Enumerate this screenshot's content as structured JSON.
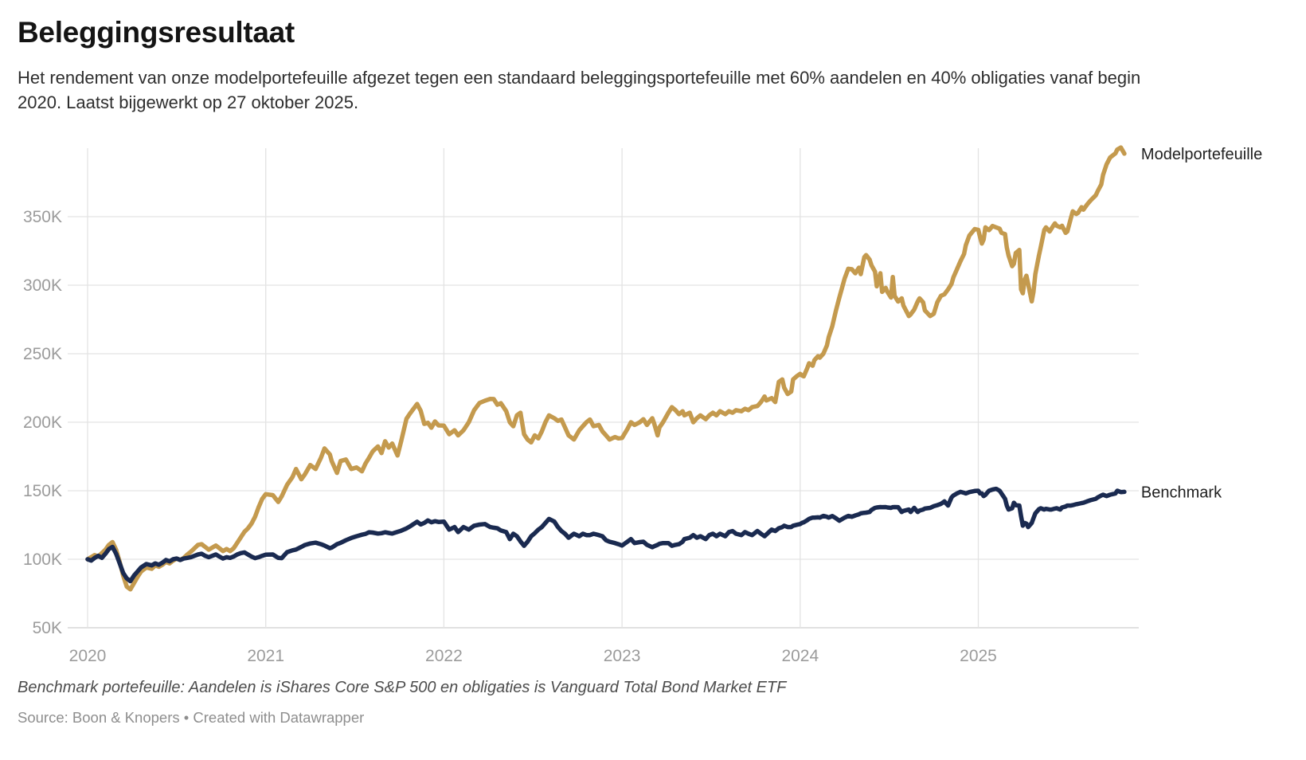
{
  "header": {
    "title": "Beleggingsresultaat",
    "subtitle": "Het rendement van onze modelportefeuille afgezet tegen een standaard beleggingsportefeuille met 60% aandelen en 40% obligaties vanaf begin 2020. Laatst bijgewerkt op 27 oktober 2025."
  },
  "footer": {
    "footnote": "Benchmark portefeuille: Aandelen is iShares Core S&P 500 en obligaties is Vanguard Total Bond Market ETF",
    "source": "Source: Boon & Knopers • Created with Datawrapper"
  },
  "colors": {
    "model_line": "#C49A4E",
    "benchmark_line": "#1A2A50",
    "grid": "#E3E3E3",
    "baseline": "#CFCFCF",
    "axis_text": "#9B9B9B",
    "series_label_text": "#1F1F1F"
  },
  "chart_data": {
    "type": "line",
    "title": "Beleggingsresultaat",
    "x_unit": "year (decimal)",
    "y_unit": "portfolio value in thousands (K)",
    "xlim": [
      2020.0,
      2025.82
    ],
    "ylim": [
      50,
      402
    ],
    "grid": true,
    "legend_position": "end-of-line",
    "x_ticks": [
      {
        "value": 2020,
        "label": "2020"
      },
      {
        "value": 2021,
        "label": "2021"
      },
      {
        "value": 2022,
        "label": "2022"
      },
      {
        "value": 2023,
        "label": "2023"
      },
      {
        "value": 2024,
        "label": "2024"
      },
      {
        "value": 2025,
        "label": "2025"
      }
    ],
    "y_ticks": [
      {
        "value": 50,
        "label": "50K"
      },
      {
        "value": 100,
        "label": "100K"
      },
      {
        "value": 150,
        "label": "150K"
      },
      {
        "value": 200,
        "label": "200K"
      },
      {
        "value": 250,
        "label": "250K"
      },
      {
        "value": 300,
        "label": "300K"
      },
      {
        "value": 350,
        "label": "350K"
      }
    ],
    "x": [
      2020.0,
      2020.02,
      2020.04,
      2020.06,
      2020.08,
      2020.1,
      2020.12,
      2020.14,
      2020.16,
      2020.18,
      2020.2,
      2020.22,
      2020.24,
      2020.26,
      2020.28,
      2020.3,
      2020.33,
      2020.36,
      2020.38,
      2020.4,
      2020.42,
      2020.44,
      2020.46,
      2020.48,
      2020.5,
      2020.52,
      2020.54,
      2020.56,
      2020.58,
      2020.6,
      2020.62,
      2020.64,
      2020.66,
      2020.68,
      2020.7,
      2020.72,
      2020.74,
      2020.76,
      2020.78,
      2020.8,
      2020.82,
      2020.84,
      2020.86,
      2020.88,
      2020.9,
      2020.92,
      2020.94,
      2020.96,
      2020.98,
      2021.0,
      2021.04,
      2021.07,
      2021.09,
      2021.12,
      2021.15,
      2021.17,
      2021.2,
      2021.22,
      2021.25,
      2021.28,
      2021.31,
      2021.33,
      2021.36,
      2021.37,
      2021.4,
      2021.42,
      2021.45,
      2021.48,
      2021.51,
      2021.54,
      2021.56,
      2021.58,
      2021.6,
      2021.63,
      2021.65,
      2021.67,
      2021.69,
      2021.71,
      2021.74,
      2021.76,
      2021.79,
      2021.81,
      2021.85,
      2021.87,
      2021.89,
      2021.91,
      2021.93,
      2021.95,
      2021.97,
      2022.0,
      2022.03,
      2022.06,
      2022.08,
      2022.11,
      2022.14,
      2022.17,
      2022.2,
      2022.23,
      2022.26,
      2022.28,
      2022.3,
      2022.32,
      2022.35,
      2022.37,
      2022.39,
      2022.41,
      2022.43,
      2022.45,
      2022.47,
      2022.49,
      2022.51,
      2022.53,
      2022.55,
      2022.57,
      2022.59,
      2022.62,
      2022.64,
      2022.66,
      2022.68,
      2022.7,
      2022.73,
      2022.76,
      2022.78,
      2022.8,
      2022.82,
      2022.84,
      2022.87,
      2022.89,
      2022.91,
      2022.93,
      2022.96,
      2022.98,
      2023.0,
      2023.03,
      2023.05,
      2023.07,
      2023.1,
      2023.12,
      2023.14,
      2023.17,
      2023.18,
      2023.2,
      2023.21,
      2023.23,
      2023.26,
      2023.28,
      2023.3,
      2023.32,
      2023.34,
      2023.35,
      2023.38,
      2023.4,
      2023.42,
      2023.44,
      2023.47,
      2023.49,
      2023.51,
      2023.53,
      2023.55,
      2023.58,
      2023.6,
      2023.62,
      2023.64,
      2023.67,
      2023.69,
      2023.71,
      2023.73,
      2023.76,
      2023.78,
      2023.8,
      2023.81,
      2023.84,
      2023.86,
      2023.88,
      2023.9,
      2023.91,
      2023.93,
      2023.95,
      2023.96,
      2023.98,
      2024.0,
      2024.01,
      2024.02,
      2024.04,
      2024.05,
      2024.07,
      2024.08,
      2024.1,
      2024.11,
      2024.13,
      2024.15,
      2024.16,
      2024.18,
      2024.2,
      2024.22,
      2024.25,
      2024.27,
      2024.29,
      2024.31,
      2024.33,
      2024.34,
      2024.36,
      2024.37,
      2024.39,
      2024.4,
      2024.42,
      2024.43,
      2024.45,
      2024.46,
      2024.48,
      2024.49,
      2024.51,
      2024.52,
      2024.53,
      2024.55,
      2024.57,
      2024.58,
      2024.61,
      2024.62,
      2024.64,
      2024.66,
      2024.67,
      2024.69,
      2024.7,
      2024.73,
      2024.75,
      2024.77,
      2024.79,
      2024.81,
      2024.83,
      2024.85,
      2024.86,
      2024.88,
      2024.9,
      2024.92,
      2024.93,
      2024.95,
      2024.98,
      2025.0,
      2025.01,
      2025.02,
      2025.03,
      2025.04,
      2025.06,
      2025.08,
      2025.1,
      2025.12,
      2025.13,
      2025.15,
      2025.16,
      2025.17,
      2025.19,
      2025.2,
      2025.21,
      2025.23,
      2025.24,
      2025.25,
      2025.26,
      2025.27,
      2025.28,
      2025.3,
      2025.31,
      2025.32,
      2025.34,
      2025.35,
      2025.37,
      2025.38,
      2025.4,
      2025.41,
      2025.43,
      2025.44,
      2025.46,
      2025.47,
      2025.49,
      2025.5,
      2025.52,
      2025.53,
      2025.55,
      2025.56,
      2025.58,
      2025.59,
      2025.61,
      2025.63,
      2025.66,
      2025.67,
      2025.69,
      2025.7,
      2025.72,
      2025.74,
      2025.77,
      2025.78,
      2025.8,
      2025.82
    ],
    "series": [
      {
        "name": "Modelportefeuille",
        "color": "#C49A4E",
        "values": [
          100,
          101.5,
          103,
          102,
          104.5,
          107,
          110.5,
          112.5,
          107,
          98,
          88,
          80,
          78,
          82.5,
          87,
          91,
          94,
          93,
          95.5,
          94.5,
          96,
          98,
          97,
          99,
          100.5,
          99.5,
          101,
          103.5,
          105.5,
          108,
          110.5,
          111,
          109,
          107,
          108.5,
          110,
          108,
          106,
          107.5,
          106,
          108,
          112,
          116,
          120,
          122.5,
          126,
          131,
          138,
          144,
          147.5,
          146.8,
          141.8,
          146,
          154.3,
          160,
          165.9,
          158.4,
          162,
          168.8,
          165.9,
          174,
          180.9,
          176.5,
          171.7,
          163,
          171.7,
          172.8,
          165.9,
          167,
          164.2,
          169.9,
          174,
          178.6,
          182.3,
          177.5,
          186.1,
          181.5,
          184.4,
          175.7,
          186,
          202.5,
          206.4,
          213.3,
          208.3,
          198.8,
          199.6,
          196,
          200.6,
          197.7,
          197.5,
          191.2,
          194.1,
          190.4,
          194.1,
          200,
          208.8,
          214,
          215.7,
          217,
          216.9,
          212.8,
          213.9,
          208,
          200,
          197.1,
          205,
          206.9,
          191.2,
          187.4,
          185.3,
          190.4,
          188.2,
          193.3,
          200,
          205,
          202.9,
          201,
          202,
          196.2,
          190.4,
          187.4,
          194.1,
          197.1,
          200,
          202,
          197.1,
          198,
          193.3,
          190.4,
          187.4,
          189.2,
          188.2,
          188.5,
          195,
          200,
          198,
          200,
          202.2,
          198,
          202.9,
          199.2,
          190.4,
          196.2,
          200,
          206.9,
          211,
          208.8,
          205.9,
          208,
          205,
          206.9,
          200,
          202.9,
          205,
          202.2,
          205,
          206.9,
          205,
          208,
          205.9,
          208,
          206.9,
          208.8,
          208,
          209.8,
          208.8,
          211,
          211.8,
          214.7,
          218.8,
          215.9,
          217.6,
          214.7,
          229.4,
          231.2,
          225.3,
          220.6,
          222.4,
          231.2,
          233.5,
          235.3,
          234.1,
          233.5,
          239.4,
          243,
          241.2,
          245.3,
          248.2,
          247.1,
          250,
          256,
          262,
          270,
          281,
          291,
          305,
          312,
          311.6,
          308.7,
          312.8,
          308.1,
          320.4,
          322,
          318.7,
          314.6,
          309.9,
          299.2,
          308.7,
          295.1,
          298,
          295.1,
          291,
          306,
          292.2,
          288.1,
          290.4,
          285.1,
          277.5,
          278.6,
          282.2,
          288.1,
          290.4,
          287.5,
          281.6,
          277.5,
          279.2,
          287.5,
          292.2,
          293.4,
          296.9,
          301,
          305.7,
          311.6,
          317.5,
          322.8,
          329.2,
          336.3,
          341,
          340.4,
          335.1,
          330.4,
          333.4,
          342.2,
          340.2,
          343.2,
          342.2,
          341.2,
          338.2,
          337.3,
          327.5,
          321.6,
          313.9,
          315.7,
          323.5,
          325.7,
          297,
          294.1,
          303.9,
          306.9,
          301,
          288.2,
          295.1,
          308.1,
          321.6,
          327.5,
          340.2,
          342.2,
          339.2,
          341.2,
          345.1,
          343.4,
          342.2,
          343.4,
          338.2,
          339.2,
          349,
          353.9,
          352,
          352.8,
          356.9,
          355.1,
          358.8,
          361.8,
          365.7,
          368.6,
          373.5,
          380.4,
          388.2,
          393.2,
          396.2,
          399,
          400.5,
          396
        ]
      },
      {
        "name": "Benchmark",
        "color": "#1A2A50",
        "values": [
          100,
          99,
          101,
          102.5,
          101,
          104,
          107.5,
          109,
          104,
          97,
          90,
          86,
          84,
          88,
          91,
          94,
          96.5,
          95.5,
          97,
          96,
          97.5,
          99.5,
          98.5,
          100,
          100.5,
          99.5,
          100.5,
          101,
          101.5,
          102.5,
          103.5,
          104,
          102.5,
          101.5,
          102.5,
          103.5,
          102,
          100.5,
          101.5,
          101,
          102,
          103.5,
          104.5,
          105,
          103.5,
          102,
          100.8,
          101.5,
          102.5,
          103.3,
          103.5,
          101,
          100.8,
          105.2,
          106.5,
          107.1,
          109,
          110.4,
          111.5,
          112.1,
          111,
          110,
          108.1,
          108.5,
          111,
          112,
          113.9,
          115.5,
          116.8,
          117.9,
          118.5,
          119.7,
          119.5,
          118.7,
          119,
          119.7,
          119.2,
          118.7,
          120,
          120.8,
          122.5,
          124,
          127.4,
          125.4,
          126.5,
          128.3,
          127,
          127.8,
          127.2,
          127.5,
          121.6,
          123.5,
          119.8,
          123.5,
          121.6,
          124.5,
          125.3,
          125.7,
          123.5,
          123,
          122.6,
          121,
          119.8,
          114.7,
          118.6,
          116.8,
          113,
          109.8,
          112.8,
          116.8,
          119,
          121.6,
          123.5,
          126.5,
          129.4,
          127.5,
          123.5,
          120.6,
          118.6,
          115.7,
          118.6,
          116.8,
          118.6,
          117.6,
          117.6,
          118.6,
          117.6,
          116.8,
          113.9,
          112.8,
          111.8,
          111,
          110,
          112.8,
          114.7,
          111.8,
          112.5,
          112.8,
          110.5,
          108.8,
          109.5,
          110.5,
          111.3,
          111.8,
          111.8,
          109.8,
          110.5,
          111,
          112.8,
          114.7,
          115.7,
          117.6,
          115.7,
          116.8,
          114.7,
          117.6,
          118.6,
          116.8,
          118.6,
          116.8,
          119.8,
          120.6,
          118.6,
          117.6,
          119.8,
          118.6,
          117.6,
          120.6,
          118.6,
          116.8,
          118,
          121.6,
          120.6,
          122.6,
          123.5,
          124.5,
          123.5,
          123.5,
          124.5,
          125.1,
          125.7,
          126.5,
          127,
          128.5,
          129.5,
          130.4,
          130.4,
          130.6,
          130.4,
          131.6,
          131,
          130.4,
          131.5,
          130,
          128.1,
          130.4,
          131.6,
          131,
          132,
          132.8,
          133.5,
          133.9,
          134,
          134.5,
          136,
          137.5,
          137.8,
          138.1,
          138,
          138.1,
          137.8,
          137.5,
          138,
          138.1,
          138,
          134.5,
          135.3,
          136.3,
          134.5,
          137.5,
          134.5,
          135.5,
          136.3,
          137,
          137.5,
          138.7,
          139.5,
          140.4,
          142.2,
          139.2,
          145.1,
          146.5,
          148,
          149.2,
          148.5,
          148,
          149,
          149.8,
          150,
          148,
          148,
          146.1,
          147,
          150,
          150.9,
          151.4,
          150,
          148,
          144.1,
          139.2,
          136.3,
          137.2,
          141.2,
          139.5,
          139.2,
          131.4,
          124.5,
          126.5,
          126,
          123.5,
          126.5,
          130,
          133.5,
          136.5,
          137.2,
          136.3,
          136.8,
          136.3,
          136.3,
          137,
          137.2,
          136.3,
          137.8,
          138.5,
          139.2,
          139.2,
          139.5,
          140.2,
          140.4,
          141,
          141.2,
          142.2,
          143.1,
          144.1,
          145.1,
          146.5,
          147.1,
          146.1,
          147.1,
          148,
          150,
          149,
          149.2
        ]
      }
    ]
  }
}
